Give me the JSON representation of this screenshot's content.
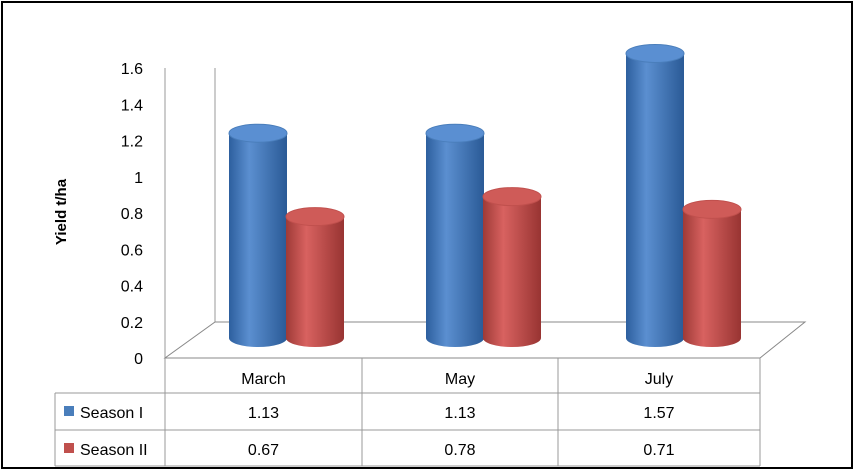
{
  "chart_data": {
    "type": "bar",
    "style": "3d-cylinder",
    "title": "",
    "xlabel": "",
    "ylabel": "Yield t/ha",
    "ylim": [
      0,
      1.6
    ],
    "yticks": [
      "0",
      "0.2",
      "0.4",
      "0.6",
      "0.8",
      "1",
      "1.2",
      "1.4",
      "1.6"
    ],
    "categories": [
      "March",
      "May",
      "July"
    ],
    "series": [
      {
        "name": "Season I",
        "values": [
          1.13,
          1.13,
          1.57
        ],
        "color": "#4a7ebb"
      },
      {
        "name": "Season II",
        "values": [
          0.67,
          0.78,
          0.71
        ],
        "color": "#c0504d"
      }
    ],
    "data_table": {
      "rows": [
        {
          "label": "Season I",
          "cells": [
            "1.13",
            "1.13",
            "1.57"
          ]
        },
        {
          "label": "Season II",
          "cells": [
            "0.67",
            "0.78",
            "0.71"
          ]
        }
      ]
    },
    "grid": false,
    "legend": "data-table"
  }
}
